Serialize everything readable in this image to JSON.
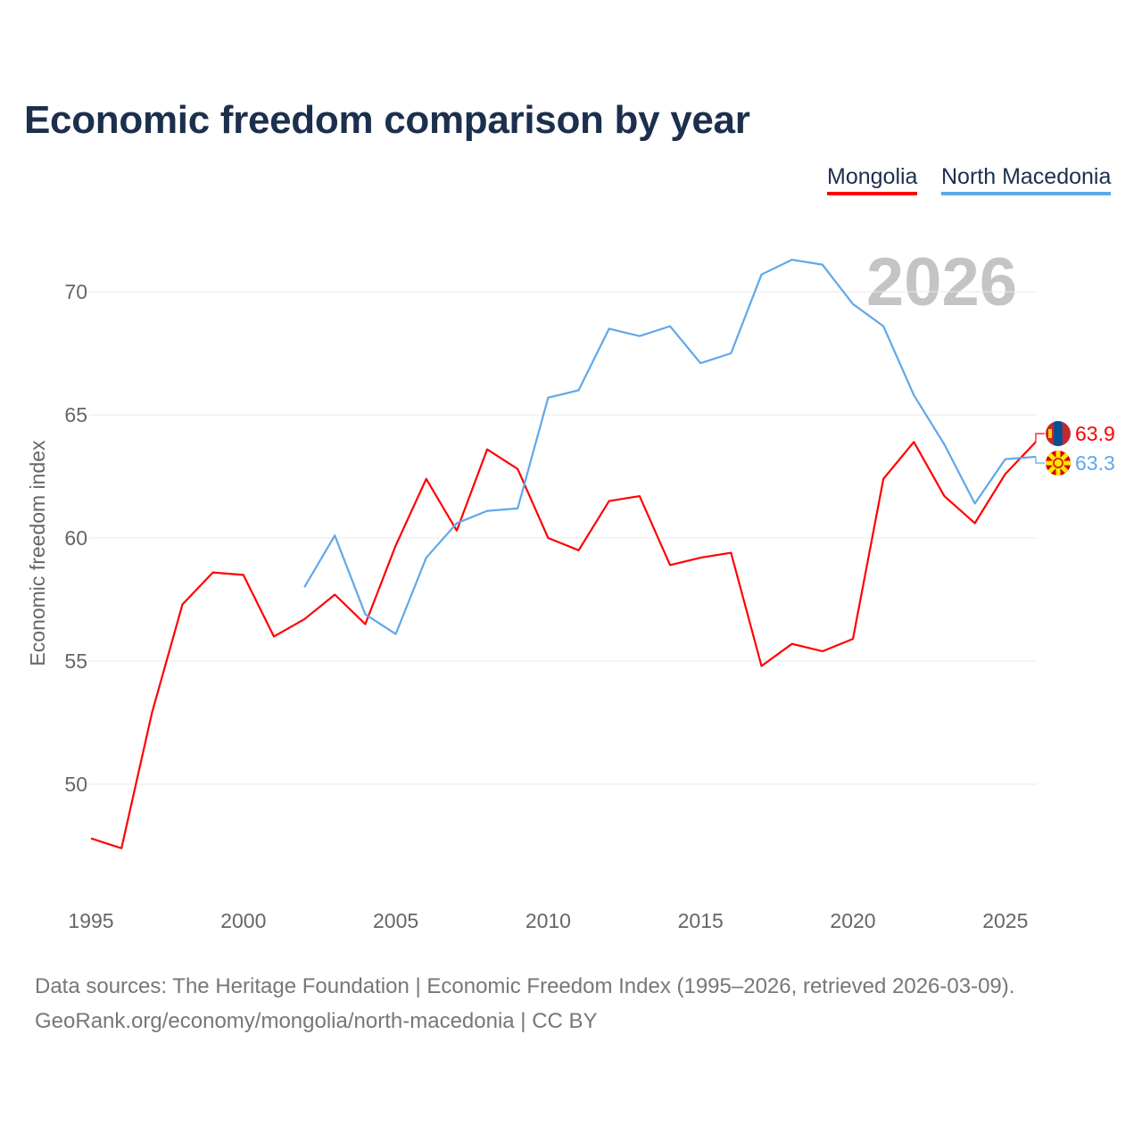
{
  "title": "Economic freedom comparison by year",
  "footer": {
    "line1": "Data sources: The Heritage Foundation | Economic Freedom Index (1995–2026, retrieved 2026-03-09).",
    "line2": "GeoRank.org/economy/mongolia/north-macedonia | CC BY"
  },
  "year_watermark": "2026",
  "chart_data": {
    "type": "line",
    "title": "Economic freedom comparison by year",
    "xlabel": "",
    "ylabel": "Economic freedom index",
    "xlim": [
      1995,
      2026
    ],
    "ylim": [
      46,
      72.5
    ],
    "xticks": [
      1995,
      2000,
      2005,
      2010,
      2015,
      2020,
      2025
    ],
    "yticks": [
      50,
      55,
      60,
      65,
      70
    ],
    "grid": true,
    "legend_position": "top-right",
    "series": [
      {
        "name": "Mongolia",
        "color": "#ff0000",
        "end_label": "63.9",
        "flag": "mongolia-flag",
        "x": [
          1995,
          1996,
          1997,
          1998,
          1999,
          2000,
          2001,
          2002,
          2003,
          2004,
          2005,
          2006,
          2007,
          2008,
          2009,
          2010,
          2011,
          2012,
          2013,
          2014,
          2015,
          2016,
          2017,
          2018,
          2019,
          2020,
          2021,
          2022,
          2023,
          2024,
          2025,
          2026
        ],
        "values": [
          47.8,
          47.4,
          52.9,
          57.3,
          58.6,
          58.5,
          56.0,
          56.7,
          57.7,
          56.5,
          59.7,
          62.4,
          60.3,
          63.6,
          62.8,
          60.0,
          59.5,
          61.5,
          61.7,
          58.9,
          59.2,
          59.4,
          54.8,
          55.7,
          55.4,
          55.9,
          62.4,
          63.9,
          61.7,
          60.6,
          62.6,
          63.9
        ]
      },
      {
        "name": "North Macedonia",
        "color": "#5fa8ea",
        "end_label": "63.3",
        "flag": "north-macedonia-flag",
        "x": [
          2002,
          2003,
          2004,
          2005,
          2006,
          2007,
          2008,
          2009,
          2010,
          2011,
          2012,
          2013,
          2014,
          2015,
          2016,
          2017,
          2018,
          2019,
          2020,
          2021,
          2022,
          2023,
          2024,
          2025,
          2026
        ],
        "values": [
          58.0,
          60.1,
          56.9,
          56.1,
          59.2,
          60.6,
          61.1,
          61.2,
          65.7,
          66.0,
          68.5,
          68.2,
          68.6,
          67.1,
          67.5,
          70.7,
          71.3,
          71.1,
          69.5,
          68.6,
          65.8,
          63.8,
          61.4,
          63.2,
          63.3
        ]
      }
    ]
  }
}
